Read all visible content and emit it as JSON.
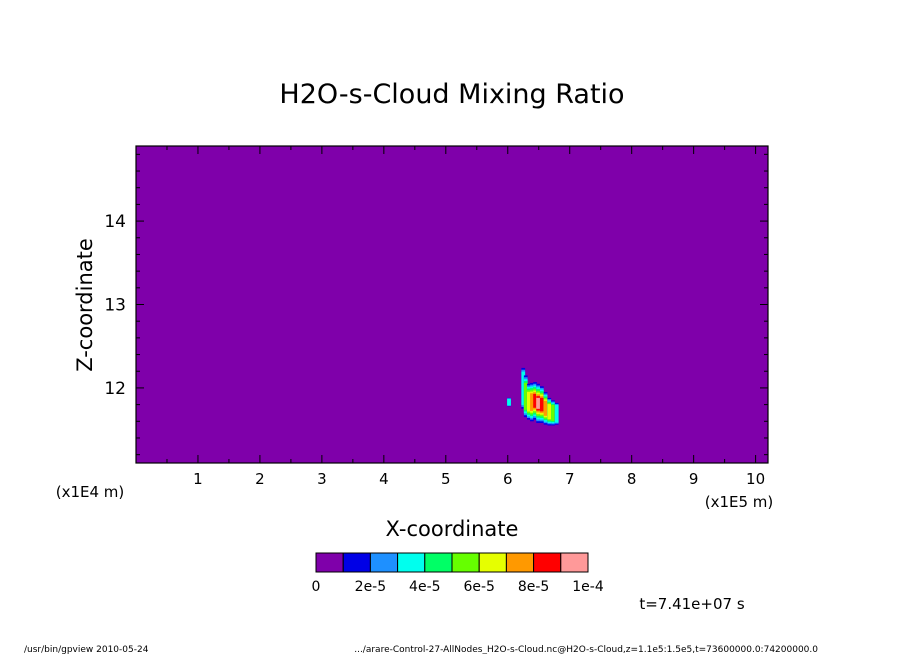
{
  "chart_data": {
    "type": "heatmap",
    "title": "H2O-s-Cloud Mixing Ratio",
    "xlabel": "X-coordinate",
    "ylabel": "Z-coordinate",
    "x_unit": "(x1E5 m)",
    "y_unit": "(x1E4 m)",
    "xlim": [
      0,
      10.2
    ],
    "ylim": [
      11.1,
      14.9
    ],
    "x_ticks": [
      "1",
      "2",
      "3",
      "4",
      "5",
      "6",
      "7",
      "8",
      "9",
      "10"
    ],
    "y_ticks": [
      "12",
      "13",
      "14"
    ],
    "background_value": 0,
    "colorbar": {
      "colors": [
        "#7f00aa",
        "#0000e6",
        "#1e90ff",
        "#00ffee",
        "#00ff66",
        "#66ff00",
        "#e6ff00",
        "#ff9900",
        "#ff0000",
        "#ff9999"
      ],
      "labels": [
        "0",
        "2e-5",
        "4e-5",
        "6e-5",
        "8e-5",
        "1e-4"
      ]
    },
    "cloud_columns": [
      {
        "x": 5.99,
        "z0": 11.78,
        "z1": 11.88,
        "level": 3
      },
      {
        "x": 6.22,
        "z0": 11.75,
        "z1": 12.24,
        "level": 3
      },
      {
        "x": 6.26,
        "z0": 11.65,
        "z1": 12.15,
        "level": 5
      },
      {
        "x": 6.31,
        "z0": 11.62,
        "z1": 12.05,
        "level": 6
      },
      {
        "x": 6.36,
        "z0": 11.6,
        "z1": 12.06,
        "level": 7
      },
      {
        "x": 6.41,
        "z0": 11.62,
        "z1": 12.07,
        "level": 8
      },
      {
        "x": 6.46,
        "z0": 11.58,
        "z1": 12.05,
        "level": 9
      },
      {
        "x": 6.52,
        "z0": 11.58,
        "z1": 12.02,
        "level": 8
      },
      {
        "x": 6.58,
        "z0": 11.56,
        "z1": 11.95,
        "level": 7
      },
      {
        "x": 6.64,
        "z0": 11.55,
        "z1": 11.88,
        "level": 6
      },
      {
        "x": 6.7,
        "z0": 11.55,
        "z1": 11.85,
        "level": 5
      },
      {
        "x": 6.76,
        "z0": 11.56,
        "z1": 11.82,
        "level": 3
      }
    ]
  },
  "footer": {
    "time": "t=7.41e+07 s",
    "program": "/usr/bin/gpview   2010-05-24",
    "source": ".../arare-Control-27-AllNodes_H2O-s-Cloud.nc@H2O-s-Cloud,z=1.1e5:1.5e5,t=73600000.0:74200000.0"
  }
}
